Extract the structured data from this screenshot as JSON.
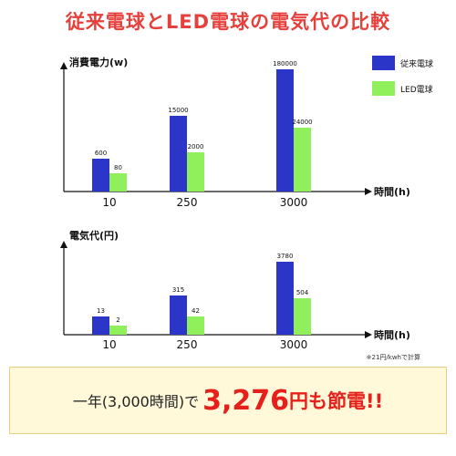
{
  "title": "従来電球とLED電球の電気代の比較",
  "colors": {
    "title": "#e5403c",
    "incandescent": "#2b36c8",
    "led": "#8ff05b",
    "accent_red": "#e6201a",
    "banner_bg": "#fff8d9"
  },
  "chart_data": [
    {
      "type": "bar",
      "ylabel": "消費電力(w)",
      "xlabel": "時間(h)",
      "categories": [
        "10",
        "250",
        "3000"
      ],
      "series": [
        {
          "name": "従来電球",
          "values": [
            600,
            15000,
            180000
          ]
        },
        {
          "name": "LED電球",
          "values": [
            80,
            2000,
            24000
          ]
        }
      ],
      "scale": "non-linear (bar heights not proportional)",
      "legend": "top-right",
      "grid": false
    },
    {
      "type": "bar",
      "ylabel": "電気代(円)",
      "xlabel": "時間(h)",
      "categories": [
        "10",
        "250",
        "3000"
      ],
      "series": [
        {
          "name": "従来電球",
          "values": [
            13,
            315,
            3780
          ]
        },
        {
          "name": "LED電球",
          "values": [
            2,
            42,
            504
          ]
        }
      ],
      "scale": "non-linear (bar heights not proportional)",
      "footnote": "※21円/kwhで計算",
      "grid": false
    }
  ],
  "banner": {
    "prefix": "一年(3,000時間)で",
    "amount": "3,276",
    "suffix": "円も節電!!"
  }
}
